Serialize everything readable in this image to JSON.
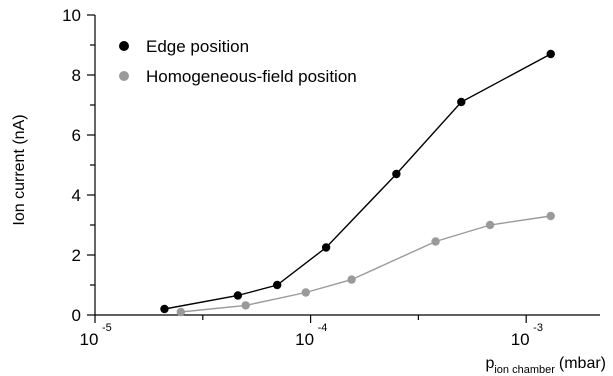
{
  "chart_data": {
    "type": "line",
    "title": "",
    "ylabel": "Ion current (nA)",
    "xlabel": {
      "main": "p",
      "subscript": "ion chamber",
      "unit": "(mbar)"
    },
    "x_scale": "log",
    "xlim": [
      1e-05,
      0.0022
    ],
    "ylim": [
      0,
      10
    ],
    "x_tick_labels": [
      {
        "value": 1e-05,
        "base": "10",
        "exponent": "-5"
      },
      {
        "value": 0.0001,
        "base": "10",
        "exponent": "-4"
      },
      {
        "value": 0.001,
        "base": "10",
        "exponent": "-3"
      }
    ],
    "y_ticks": [
      0,
      2,
      4,
      6,
      8,
      10
    ],
    "y_tick_labels": [
      "0",
      "2",
      "4",
      "6",
      "8",
      "10"
    ],
    "grid": false,
    "legend_position": "top-left",
    "series": [
      {
        "name": "Edge position",
        "color": "#000000",
        "x": [
          2.1e-05,
          4.6e-05,
          7e-05,
          0.000118,
          0.00025,
          0.0005,
          0.0013
        ],
        "y": [
          0.2,
          0.65,
          1.0,
          2.25,
          4.7,
          7.1,
          8.7
        ]
      },
      {
        "name": "Homogeneous-field position",
        "color": "#9a9a9a",
        "x": [
          2.5e-05,
          5e-05,
          9.5e-05,
          0.000155,
          0.00038,
          0.00068,
          0.0013
        ],
        "y": [
          0.1,
          0.32,
          0.75,
          1.18,
          2.45,
          3.0,
          3.3
        ]
      }
    ]
  }
}
